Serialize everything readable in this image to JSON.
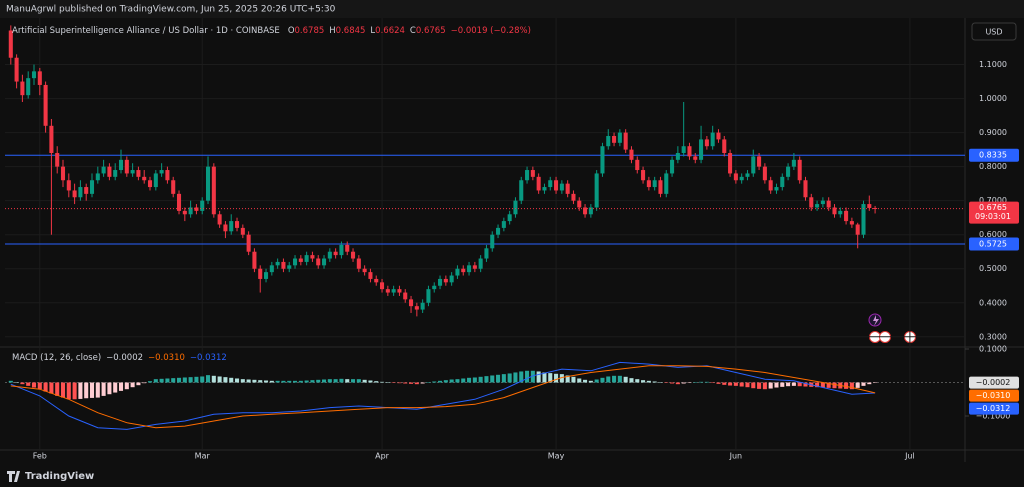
{
  "header": {
    "publisher": "ManuAgrwl published on TradingView.com, Jun 25, 2025 20:26 UTC+5:30",
    "currency": "USD",
    "footer": "TradingView"
  },
  "chart_data": [
    {
      "type": "candlestick",
      "title": "Artificial Superintelligence Alliance / US Dollar · 1D · COINBASE",
      "ohlc_labels": [
        "O",
        "H",
        "L",
        "C"
      ],
      "change_label": "−0.0019 (−0.28%)",
      "countdown": "09:03:01",
      "up_color": "#089981",
      "down_color": "#f23645",
      "grid": true,
      "xlim": [
        -1,
        164.5
      ],
      "xticks": [
        {
          "value": 5,
          "label": "Feb"
        },
        {
          "value": 33,
          "label": "Mar"
        },
        {
          "value": 64,
          "label": "Apr"
        },
        {
          "value": 94,
          "label": "May"
        },
        {
          "value": 125,
          "label": "Jun"
        },
        {
          "value": 155,
          "label": "Jul"
        }
      ],
      "ylim": [
        0.27,
        1.225
      ],
      "yticks": [
        {
          "value": 0.3,
          "label": "0.3000"
        },
        {
          "value": 0.4,
          "label": "0.4000"
        },
        {
          "value": 0.5,
          "label": "0.5000"
        },
        {
          "value": 0.6,
          "label": "0.6000"
        },
        {
          "value": 0.7,
          "label": "0.7000"
        },
        {
          "value": 0.8,
          "label": "0.8000"
        },
        {
          "value": 0.9,
          "label": "0.9000"
        },
        {
          "value": 1,
          "label": "1.0000"
        },
        {
          "value": 1.1,
          "label": "1.1000"
        }
      ],
      "levels": [
        {
          "value": 0.8335,
          "color": "#2962ff"
        },
        {
          "value": 0.5725,
          "color": "#2962ff"
        }
      ],
      "ohlc": [
        [
          1.2,
          1.215,
          1.1,
          1.12
        ],
        [
          1.12,
          1.13,
          1.03,
          1.05
        ],
        [
          1.05,
          1.07,
          0.99,
          1.01
        ],
        [
          1.01,
          1.08,
          1,
          1.06
        ],
        [
          1.06,
          1.1,
          1.04,
          1.08
        ],
        [
          1.08,
          1.09,
          1.01,
          1.04
        ],
        [
          1.04,
          1.05,
          0.9,
          0.92
        ],
        [
          0.92,
          0.94,
          0.6,
          0.84
        ],
        [
          0.84,
          0.86,
          0.78,
          0.8
        ],
        [
          0.8,
          0.82,
          0.74,
          0.76
        ],
        [
          0.76,
          0.78,
          0.71,
          0.73
        ],
        [
          0.73,
          0.75,
          0.69,
          0.71
        ],
        [
          0.71,
          0.76,
          0.7,
          0.74
        ],
        [
          0.74,
          0.75,
          0.7,
          0.72
        ],
        [
          0.72,
          0.78,
          0.71,
          0.76
        ],
        [
          0.76,
          0.8,
          0.75,
          0.78
        ],
        [
          0.78,
          0.82,
          0.77,
          0.8
        ],
        [
          0.8,
          0.81,
          0.76,
          0.77
        ],
        [
          0.77,
          0.81,
          0.76,
          0.79
        ],
        [
          0.79,
          0.85,
          0.78,
          0.82
        ],
        [
          0.82,
          0.83,
          0.77,
          0.78
        ],
        [
          0.78,
          0.81,
          0.77,
          0.79
        ],
        [
          0.79,
          0.8,
          0.76,
          0.77
        ],
        [
          0.77,
          0.79,
          0.75,
          0.76
        ],
        [
          0.76,
          0.77,
          0.73,
          0.74
        ],
        [
          0.74,
          0.79,
          0.73,
          0.78
        ],
        [
          0.78,
          0.81,
          0.77,
          0.79
        ],
        [
          0.79,
          0.8,
          0.75,
          0.76
        ],
        [
          0.76,
          0.77,
          0.71,
          0.72
        ],
        [
          0.72,
          0.73,
          0.66,
          0.67
        ],
        [
          0.67,
          0.68,
          0.64,
          0.66
        ],
        [
          0.66,
          0.7,
          0.65,
          0.68
        ],
        [
          0.68,
          0.69,
          0.66,
          0.67
        ],
        [
          0.67,
          0.71,
          0.66,
          0.7
        ],
        [
          0.7,
          0.83,
          0.69,
          0.8
        ],
        [
          0.8,
          0.81,
          0.65,
          0.66
        ],
        [
          0.66,
          0.67,
          0.62,
          0.63
        ],
        [
          0.63,
          0.64,
          0.59,
          0.61
        ],
        [
          0.61,
          0.66,
          0.6,
          0.64
        ],
        [
          0.64,
          0.65,
          0.61,
          0.62
        ],
        [
          0.62,
          0.63,
          0.59,
          0.6
        ],
        [
          0.6,
          0.61,
          0.54,
          0.55
        ],
        [
          0.55,
          0.56,
          0.49,
          0.5
        ],
        [
          0.5,
          0.51,
          0.43,
          0.47
        ],
        [
          0.47,
          0.5,
          0.46,
          0.49
        ],
        [
          0.49,
          0.52,
          0.48,
          0.51
        ],
        [
          0.51,
          0.53,
          0.5,
          0.52
        ],
        [
          0.52,
          0.53,
          0.49,
          0.5
        ],
        [
          0.5,
          0.52,
          0.49,
          0.51
        ],
        [
          0.51,
          0.54,
          0.5,
          0.53
        ],
        [
          0.53,
          0.54,
          0.51,
          0.52
        ],
        [
          0.52,
          0.55,
          0.51,
          0.54
        ],
        [
          0.54,
          0.55,
          0.52,
          0.53
        ],
        [
          0.53,
          0.54,
          0.5,
          0.51
        ],
        [
          0.51,
          0.54,
          0.5,
          0.53
        ],
        [
          0.53,
          0.56,
          0.52,
          0.55
        ],
        [
          0.55,
          0.56,
          0.53,
          0.54
        ],
        [
          0.54,
          0.58,
          0.53,
          0.57
        ],
        [
          0.57,
          0.58,
          0.54,
          0.55
        ],
        [
          0.55,
          0.56,
          0.52,
          0.53
        ],
        [
          0.53,
          0.54,
          0.49,
          0.5
        ],
        [
          0.5,
          0.51,
          0.48,
          0.49
        ],
        [
          0.49,
          0.5,
          0.46,
          0.47
        ],
        [
          0.47,
          0.48,
          0.45,
          0.46
        ],
        [
          0.46,
          0.47,
          0.43,
          0.44
        ],
        [
          0.44,
          0.45,
          0.42,
          0.43
        ],
        [
          0.43,
          0.45,
          0.42,
          0.44
        ],
        [
          0.44,
          0.45,
          0.42,
          0.43
        ],
        [
          0.43,
          0.44,
          0.4,
          0.41
        ],
        [
          0.41,
          0.42,
          0.37,
          0.39
        ],
        [
          0.39,
          0.4,
          0.36,
          0.38
        ],
        [
          0.38,
          0.41,
          0.37,
          0.4
        ],
        [
          0.4,
          0.45,
          0.39,
          0.44
        ],
        [
          0.44,
          0.46,
          0.43,
          0.45
        ],
        [
          0.45,
          0.48,
          0.44,
          0.47
        ],
        [
          0.47,
          0.48,
          0.45,
          0.46
        ],
        [
          0.46,
          0.49,
          0.45,
          0.48
        ],
        [
          0.48,
          0.51,
          0.47,
          0.5
        ],
        [
          0.5,
          0.51,
          0.48,
          0.49
        ],
        [
          0.49,
          0.52,
          0.48,
          0.51
        ],
        [
          0.51,
          0.52,
          0.49,
          0.5
        ],
        [
          0.5,
          0.54,
          0.49,
          0.53
        ],
        [
          0.53,
          0.57,
          0.52,
          0.56
        ],
        [
          0.56,
          0.61,
          0.55,
          0.6
        ],
        [
          0.6,
          0.63,
          0.59,
          0.62
        ],
        [
          0.62,
          0.65,
          0.61,
          0.64
        ],
        [
          0.64,
          0.67,
          0.63,
          0.66
        ],
        [
          0.66,
          0.71,
          0.65,
          0.7
        ],
        [
          0.7,
          0.77,
          0.69,
          0.76
        ],
        [
          0.76,
          0.8,
          0.75,
          0.79
        ],
        [
          0.79,
          0.8,
          0.76,
          0.77
        ],
        [
          0.77,
          0.78,
          0.72,
          0.73
        ],
        [
          0.73,
          0.75,
          0.72,
          0.74
        ],
        [
          0.74,
          0.77,
          0.73,
          0.76
        ],
        [
          0.76,
          0.77,
          0.72,
          0.73
        ],
        [
          0.73,
          0.76,
          0.72,
          0.75
        ],
        [
          0.75,
          0.76,
          0.71,
          0.72
        ],
        [
          0.72,
          0.73,
          0.69,
          0.7
        ],
        [
          0.7,
          0.71,
          0.67,
          0.68
        ],
        [
          0.68,
          0.69,
          0.65,
          0.66
        ],
        [
          0.66,
          0.69,
          0.65,
          0.68
        ],
        [
          0.68,
          0.79,
          0.67,
          0.78
        ],
        [
          0.78,
          0.87,
          0.77,
          0.86
        ],
        [
          0.86,
          0.91,
          0.85,
          0.89
        ],
        [
          0.89,
          0.9,
          0.86,
          0.87
        ],
        [
          0.87,
          0.91,
          0.86,
          0.9
        ],
        [
          0.9,
          0.91,
          0.84,
          0.85
        ],
        [
          0.85,
          0.86,
          0.81,
          0.82
        ],
        [
          0.82,
          0.83,
          0.78,
          0.79
        ],
        [
          0.79,
          0.8,
          0.75,
          0.76
        ],
        [
          0.76,
          0.77,
          0.73,
          0.74
        ],
        [
          0.74,
          0.77,
          0.73,
          0.76
        ],
        [
          0.76,
          0.77,
          0.71,
          0.72
        ],
        [
          0.72,
          0.79,
          0.71,
          0.78
        ],
        [
          0.78,
          0.83,
          0.77,
          0.82
        ],
        [
          0.82,
          0.86,
          0.81,
          0.84
        ],
        [
          0.84,
          0.99,
          0.83,
          0.86
        ],
        [
          0.86,
          0.87,
          0.82,
          0.83
        ],
        [
          0.83,
          0.84,
          0.81,
          0.82
        ],
        [
          0.82,
          0.92,
          0.81,
          0.88
        ],
        [
          0.88,
          0.89,
          0.85,
          0.86
        ],
        [
          0.86,
          0.92,
          0.85,
          0.9
        ],
        [
          0.9,
          0.91,
          0.87,
          0.88
        ],
        [
          0.88,
          0.89,
          0.83,
          0.84
        ],
        [
          0.84,
          0.85,
          0.77,
          0.78
        ],
        [
          0.78,
          0.79,
          0.75,
          0.76
        ],
        [
          0.76,
          0.78,
          0.75,
          0.77
        ],
        [
          0.77,
          0.79,
          0.76,
          0.78
        ],
        [
          0.78,
          0.85,
          0.77,
          0.83
        ],
        [
          0.83,
          0.84,
          0.79,
          0.8
        ],
        [
          0.8,
          0.81,
          0.75,
          0.76
        ],
        [
          0.76,
          0.77,
          0.72,
          0.73
        ],
        [
          0.73,
          0.75,
          0.72,
          0.74
        ],
        [
          0.74,
          0.78,
          0.73,
          0.77
        ],
        [
          0.77,
          0.81,
          0.76,
          0.8
        ],
        [
          0.8,
          0.84,
          0.79,
          0.82
        ],
        [
          0.82,
          0.83,
          0.75,
          0.76
        ],
        [
          0.76,
          0.77,
          0.7,
          0.71
        ],
        [
          0.71,
          0.72,
          0.67,
          0.68
        ],
        [
          0.68,
          0.7,
          0.67,
          0.69
        ],
        [
          0.69,
          0.71,
          0.68,
          0.7
        ],
        [
          0.7,
          0.71,
          0.67,
          0.68
        ],
        [
          0.68,
          0.69,
          0.65,
          0.66
        ],
        [
          0.66,
          0.68,
          0.65,
          0.67
        ],
        [
          0.67,
          0.68,
          0.63,
          0.64
        ],
        [
          0.64,
          0.65,
          0.62,
          0.63
        ],
        [
          0.63,
          0.635,
          0.56,
          0.6
        ],
        [
          0.6,
          0.7,
          0.59,
          0.69
        ],
        [
          0.69,
          0.715,
          0.67,
          0.6785
        ],
        [
          0.6785,
          0.6845,
          0.6624,
          0.6765
        ]
      ]
    },
    {
      "type": "macd",
      "title": "MACD (12, 26, close)",
      "ylim": [
        -0.2015,
        0.106
      ],
      "yticks": [
        {
          "value": 0.1,
          "label": "0.1000"
        },
        {
          "value": -0.1,
          "label": "−0.1000"
        }
      ],
      "histogram": {
        "last_label": "−0.0002",
        "colors": {
          "up": "#26a69a",
          "up_fading": "#b2dfdb",
          "down": "#ff5252",
          "down_fading": "#ffcdd2"
        },
        "values": [
          0.005,
          0,
          -0.005,
          -0.01,
          -0.015,
          -0.02,
          -0.027,
          -0.033,
          -0.04,
          -0.045,
          -0.05,
          -0.05,
          -0.049,
          -0.047,
          -0.046,
          -0.045,
          -0.04,
          -0.035,
          -0.03,
          -0.025,
          -0.02,
          -0.014,
          -0.008,
          -0.002,
          0.004,
          0.01,
          0.011,
          0.012,
          0.013,
          0.014,
          0.015,
          0.016,
          0.017,
          0.018,
          0.022,
          0.02,
          0.018,
          0.016,
          0.014,
          0.012,
          0.01,
          0.009,
          0.008,
          0.007,
          0.006,
          0.005,
          0.005,
          0.005,
          0.005,
          0.005,
          0.005,
          0.006,
          0.007,
          0.008,
          0.009,
          0.01,
          0.01,
          0.011,
          0.01,
          0.01,
          0.01,
          0.008,
          0.006,
          0.004,
          0.002,
          0,
          -0.001,
          -0.002,
          -0.003,
          -0.004,
          -0.005,
          -0.003,
          0,
          0.003,
          0.005,
          0.007,
          0.009,
          0.01,
          0.012,
          0.014,
          0.015,
          0.017,
          0.019,
          0.021,
          0.023,
          0.025,
          0.027,
          0.03,
          0.033,
          0.035,
          0.035,
          0.033,
          0.03,
          0.028,
          0.026,
          0.025,
          0.021,
          0.017,
          0.012,
          0.008,
          0.005,
          0.009,
          0.014,
          0.018,
          0.02,
          0.02,
          0.017,
          0.013,
          0.01,
          0.007,
          0.005,
          0.003,
          0.001,
          -0.001,
          -0.003,
          -0.005,
          -0.003,
          -0.001,
          0.001,
          0.002,
          0.002,
          -0.001,
          -0.004,
          -0.007,
          -0.009,
          -0.01,
          -0.012,
          -0.014,
          -0.017,
          -0.019,
          -0.02,
          -0.018,
          -0.015,
          -0.013,
          -0.011,
          -0.01,
          -0.011,
          -0.012,
          -0.013,
          -0.014,
          -0.015,
          -0.016,
          -0.017,
          -0.018,
          -0.019,
          -0.02,
          -0.016,
          -0.01,
          -0.005,
          -0.0002
        ]
      },
      "x": [
        0,
        5,
        10,
        15,
        20,
        25,
        30,
        35,
        40,
        45,
        50,
        55,
        60,
        65,
        70,
        75,
        80,
        85,
        90,
        95,
        100,
        105,
        110,
        115,
        120,
        125,
        130,
        135,
        140,
        145,
        149
      ],
      "series": [
        {
          "color": "#2962ff",
          "last_label": "−0.0312",
          "values": [
            -0.005,
            -0.04,
            -0.1,
            -0.135,
            -0.14,
            -0.125,
            -0.115,
            -0.095,
            -0.09,
            -0.09,
            -0.085,
            -0.075,
            -0.07,
            -0.075,
            -0.08,
            -0.065,
            -0.05,
            -0.02,
            0.02,
            0.04,
            0.035,
            0.06,
            0.055,
            0.045,
            0.05,
            0.03,
            0.01,
            0.005,
            -0.015,
            -0.035,
            -0.0312
          ]
        },
        {
          "color": "#ff6d00",
          "last_label": "−0.0310",
          "values": [
            -0.01,
            -0.02,
            -0.05,
            -0.09,
            -0.12,
            -0.135,
            -0.13,
            -0.115,
            -0.1,
            -0.095,
            -0.09,
            -0.085,
            -0.08,
            -0.075,
            -0.075,
            -0.072,
            -0.065,
            -0.045,
            -0.015,
            0.015,
            0.03,
            0.04,
            0.05,
            0.05,
            0.048,
            0.04,
            0.03,
            0.015,
            0,
            -0.015,
            -0.031
          ]
        }
      ]
    }
  ]
}
